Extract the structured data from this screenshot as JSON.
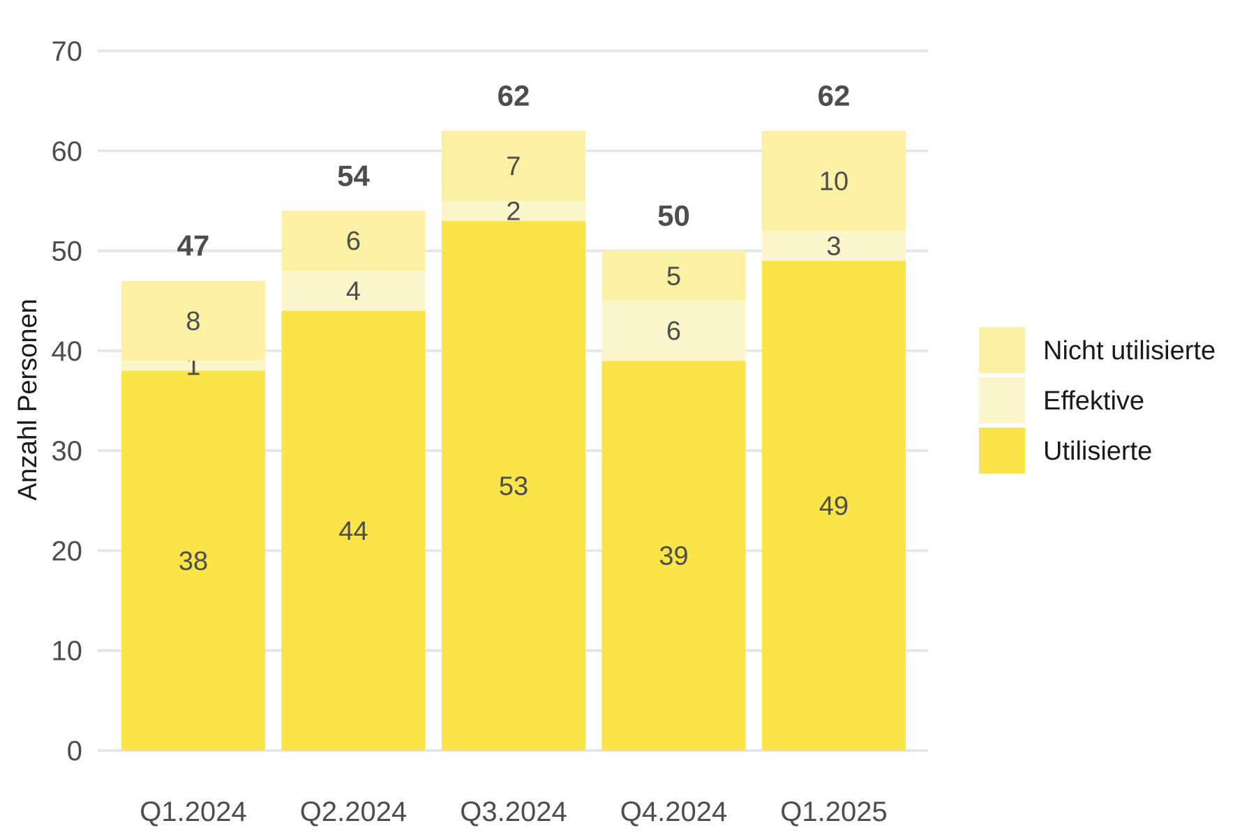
{
  "chart_data": {
    "type": "bar",
    "stacked": true,
    "categories": [
      "Q1.2024",
      "Q2.2024",
      "Q3.2024",
      "Q4.2024",
      "Q1.2025"
    ],
    "series": [
      {
        "name": "Utilisierte",
        "values": [
          38,
          44,
          53,
          39,
          49
        ],
        "color": "#f9e449"
      },
      {
        "name": "Effektive",
        "values": [
          1,
          4,
          2,
          6,
          3
        ],
        "color": "#fcf6cc"
      },
      {
        "name": "Nicht utilisierte",
        "values": [
          8,
          6,
          7,
          5,
          10
        ],
        "color": "#fbf1a4"
      }
    ],
    "totals": [
      47,
      54,
      62,
      50,
      62
    ],
    "ylabel": "Anzahl Personen",
    "xlabel": "",
    "ylim": [
      0,
      70
    ],
    "yticks": [
      0,
      10,
      20,
      30,
      40,
      50,
      60,
      70
    ],
    "grid": true,
    "legend_position": "right",
    "legend_order": [
      "Nicht utilisierte",
      "Effektive",
      "Utilisierte"
    ]
  }
}
